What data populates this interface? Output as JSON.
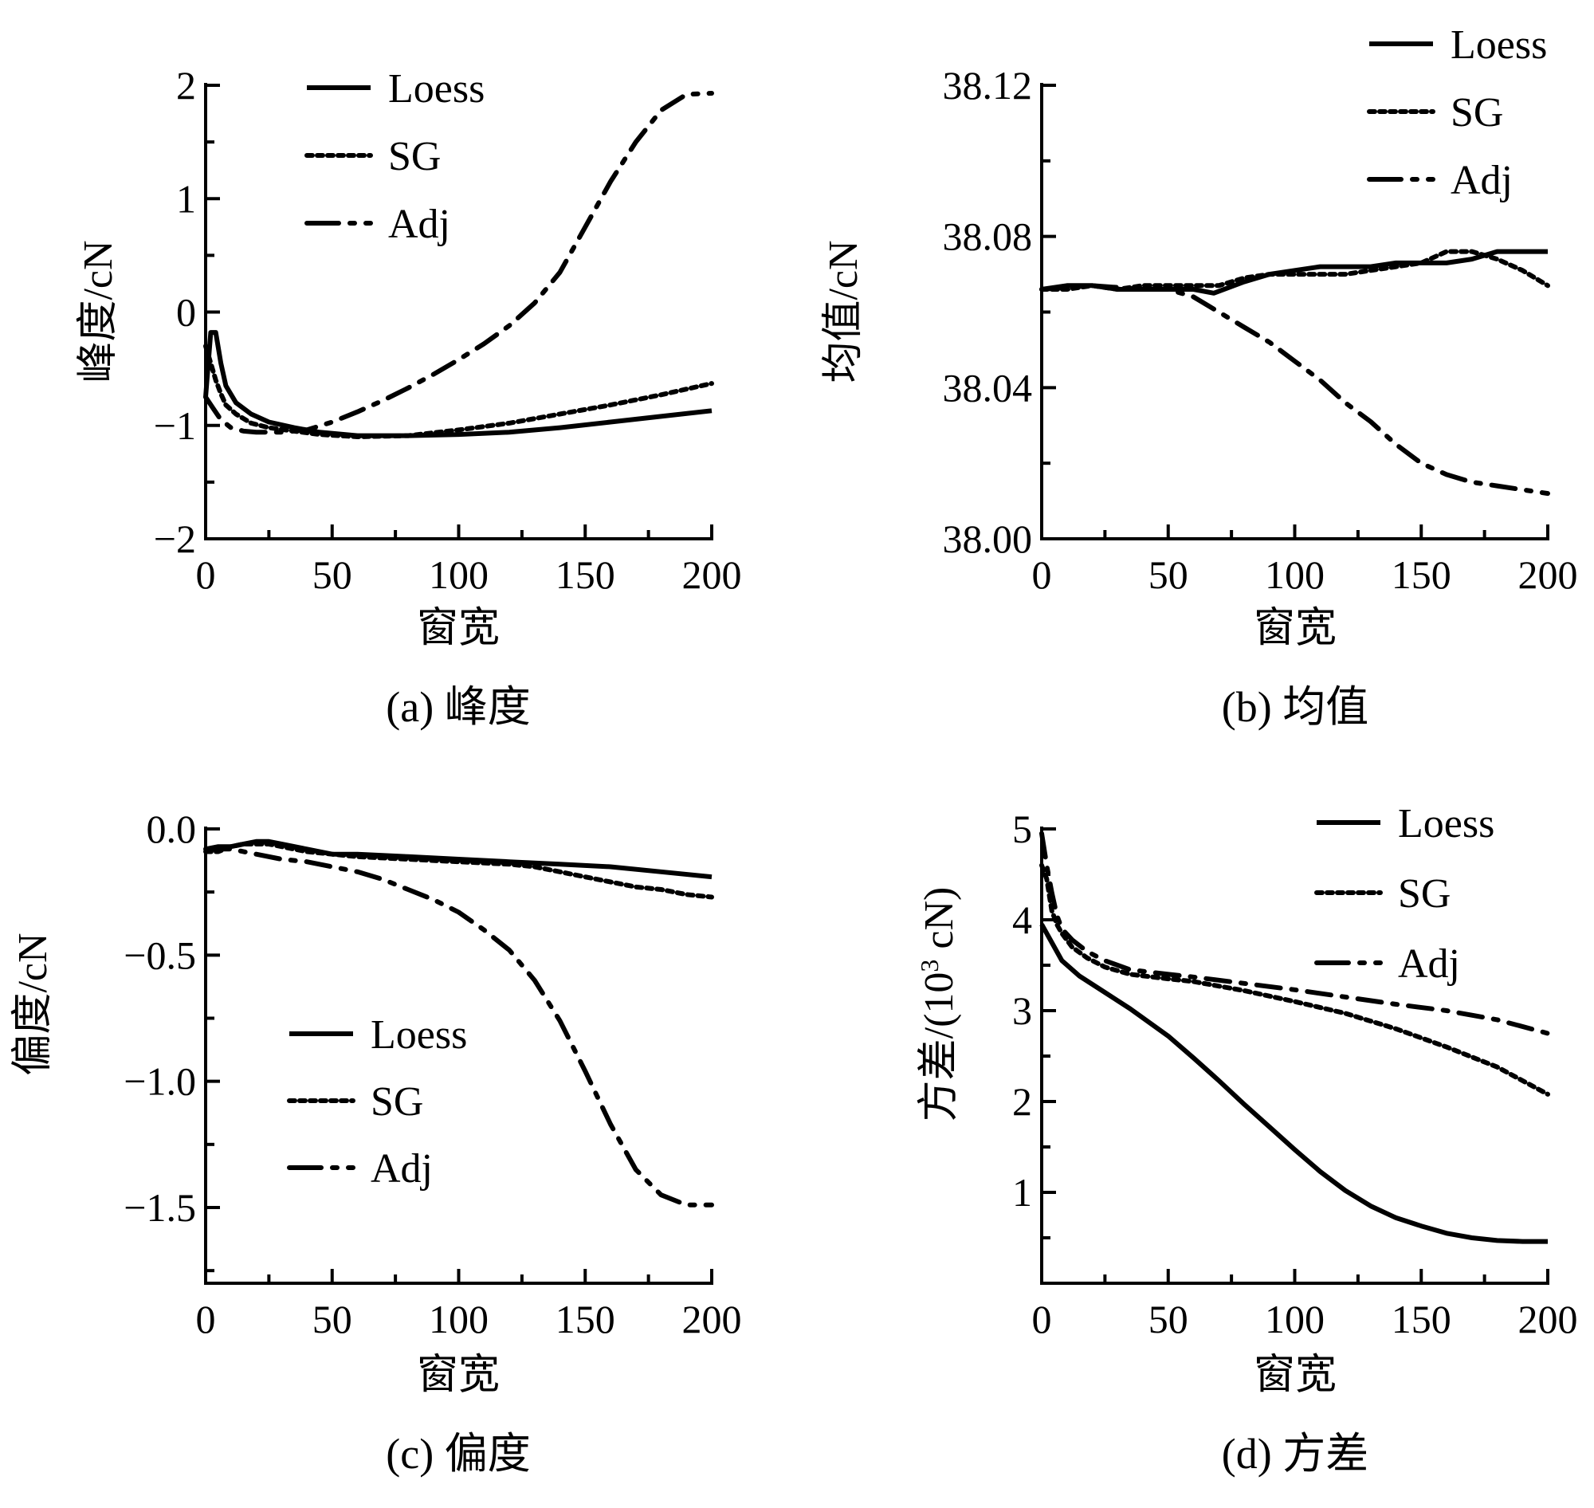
{
  "chart_data": [
    {
      "id": "a",
      "type": "line",
      "caption": "(a)  峰度",
      "xlabel": "窗宽",
      "ylabel": "峰度/cN",
      "xlim": [
        0,
        200
      ],
      "ylim": [
        -2,
        2
      ],
      "xticks": [
        0,
        50,
        100,
        150,
        200
      ],
      "xtick_labels": [
        "0",
        "50",
        "100",
        "150",
        "200"
      ],
      "yticks": [
        -2,
        -1,
        0,
        1,
        2
      ],
      "ytick_labels": [
        "−2",
        "−1",
        "0",
        "1",
        "2"
      ],
      "legend_position": "top-left",
      "series": [
        {
          "name": "Loess",
          "style": "solid",
          "x": [
            0,
            2,
            4,
            6,
            8,
            12,
            18,
            25,
            35,
            45,
            60,
            80,
            100,
            120,
            140,
            160,
            180,
            200
          ],
          "y": [
            -0.75,
            -0.18,
            -0.18,
            -0.45,
            -0.65,
            -0.8,
            -0.9,
            -0.97,
            -1.02,
            -1.06,
            -1.09,
            -1.09,
            -1.08,
            -1.06,
            -1.02,
            -0.97,
            -0.92,
            -0.87
          ]
        },
        {
          "name": "SG",
          "style": "dotted",
          "x": [
            0,
            2,
            4,
            6,
            8,
            12,
            18,
            25,
            35,
            45,
            60,
            80,
            100,
            120,
            140,
            160,
            180,
            200
          ],
          "y": [
            -0.3,
            -0.45,
            -0.6,
            -0.72,
            -0.82,
            -0.9,
            -0.98,
            -1.02,
            -1.05,
            -1.08,
            -1.1,
            -1.09,
            -1.04,
            -0.98,
            -0.9,
            -0.82,
            -0.73,
            -0.63
          ]
        },
        {
          "name": "Adj",
          "style": "dashdot",
          "x": [
            0,
            3,
            6,
            10,
            15,
            20,
            30,
            40,
            50,
            60,
            70,
            80,
            90,
            100,
            110,
            120,
            130,
            140,
            150,
            160,
            170,
            180,
            190,
            200
          ],
          "y": [
            -0.75,
            -0.85,
            -0.95,
            -1.02,
            -1.05,
            -1.06,
            -1.06,
            -1.04,
            -0.97,
            -0.88,
            -0.78,
            -0.67,
            -0.55,
            -0.42,
            -0.28,
            -0.12,
            0.08,
            0.35,
            0.75,
            1.15,
            1.5,
            1.78,
            1.92,
            1.93
          ]
        }
      ]
    },
    {
      "id": "b",
      "type": "line",
      "caption": "(b)  均值",
      "xlabel": "窗宽",
      "ylabel": "均值/cN",
      "xlim": [
        0,
        200
      ],
      "ylim": [
        38.0,
        38.12
      ],
      "xticks": [
        0,
        50,
        100,
        150,
        200
      ],
      "xtick_labels": [
        "0",
        "50",
        "100",
        "150",
        "200"
      ],
      "yticks": [
        38.0,
        38.04,
        38.08,
        38.12
      ],
      "ytick_labels": [
        "38.00",
        "38.04",
        "38.08",
        "38.12"
      ],
      "legend_position": "top-right",
      "series": [
        {
          "name": "Loess",
          "style": "solid",
          "x": [
            0,
            10,
            20,
            30,
            40,
            50,
            60,
            68,
            80,
            90,
            100,
            110,
            120,
            130,
            140,
            150,
            160,
            170,
            180,
            185,
            200
          ],
          "y": [
            38.066,
            38.067,
            38.067,
            38.066,
            38.066,
            38.066,
            38.066,
            38.065,
            38.068,
            38.07,
            38.071,
            38.072,
            38.072,
            38.072,
            38.073,
            38.073,
            38.073,
            38.074,
            38.076,
            38.076,
            38.076
          ]
        },
        {
          "name": "SG",
          "style": "dotted",
          "x": [
            0,
            10,
            20,
            30,
            40,
            50,
            60,
            70,
            80,
            90,
            100,
            110,
            120,
            130,
            140,
            150,
            160,
            170,
            180,
            190,
            200
          ],
          "y": [
            38.066,
            38.066,
            38.067,
            38.066,
            38.067,
            38.067,
            38.067,
            38.067,
            38.069,
            38.07,
            38.07,
            38.07,
            38.07,
            38.071,
            38.072,
            38.073,
            38.076,
            38.076,
            38.074,
            38.071,
            38.067
          ]
        },
        {
          "name": "Adj",
          "style": "dashdot",
          "x": [
            0,
            20,
            40,
            50,
            60,
            70,
            80,
            90,
            100,
            110,
            120,
            130,
            140,
            150,
            160,
            170,
            180,
            190,
            200
          ],
          "y": [
            38.066,
            38.067,
            38.066,
            38.066,
            38.064,
            38.06,
            38.056,
            38.052,
            38.047,
            38.042,
            38.036,
            38.031,
            38.025,
            38.02,
            38.017,
            38.015,
            38.014,
            38.013,
            38.012
          ]
        }
      ]
    },
    {
      "id": "c",
      "type": "line",
      "caption": "(c)  偏度",
      "xlabel": "窗宽",
      "ylabel": "偏度/cN",
      "xlim": [
        0,
        200
      ],
      "ylim": [
        -1.8,
        0.0
      ],
      "xticks": [
        0,
        50,
        100,
        150,
        200
      ],
      "xtick_labels": [
        "0",
        "50",
        "100",
        "150",
        "200"
      ],
      "yticks": [
        0.0,
        -0.5,
        -1.0,
        -1.5
      ],
      "ytick_labels": [
        "0.0",
        "−0.5",
        "−1.0",
        "−1.5"
      ],
      "legend_position": "center-left",
      "series": [
        {
          "name": "Loess",
          "style": "solid",
          "x": [
            0,
            5,
            10,
            15,
            20,
            25,
            30,
            40,
            50,
            60,
            80,
            100,
            120,
            140,
            160,
            180,
            200
          ],
          "y": [
            -0.08,
            -0.07,
            -0.07,
            -0.06,
            -0.05,
            -0.05,
            -0.06,
            -0.08,
            -0.1,
            -0.1,
            -0.11,
            -0.12,
            -0.13,
            -0.14,
            -0.15,
            -0.17,
            -0.19
          ]
        },
        {
          "name": "SG",
          "style": "dotted",
          "x": [
            0,
            5,
            10,
            15,
            20,
            25,
            30,
            40,
            50,
            60,
            80,
            100,
            120,
            130,
            140,
            150,
            160,
            170,
            180,
            190,
            200
          ],
          "y": [
            -0.09,
            -0.09,
            -0.07,
            -0.06,
            -0.06,
            -0.06,
            -0.07,
            -0.09,
            -0.1,
            -0.11,
            -0.12,
            -0.13,
            -0.14,
            -0.15,
            -0.17,
            -0.19,
            -0.21,
            -0.23,
            -0.24,
            -0.26,
            -0.27
          ]
        },
        {
          "name": "Adj",
          "style": "dashdot",
          "x": [
            0,
            5,
            10,
            20,
            30,
            40,
            50,
            60,
            70,
            80,
            90,
            100,
            110,
            120,
            130,
            140,
            150,
            160,
            170,
            180,
            190,
            200
          ],
          "y": [
            -0.08,
            -0.08,
            -0.08,
            -0.1,
            -0.12,
            -0.13,
            -0.15,
            -0.17,
            -0.2,
            -0.24,
            -0.28,
            -0.33,
            -0.4,
            -0.48,
            -0.6,
            -0.76,
            -0.96,
            -1.17,
            -1.35,
            -1.45,
            -1.49,
            -1.49
          ]
        }
      ]
    },
    {
      "id": "d",
      "type": "line",
      "caption": "(d)  方差",
      "xlabel": "窗宽",
      "ylabel": "方差/(10",
      "ylabel_sup": "3",
      "ylabel_tail": " cN)",
      "xlim": [
        0,
        200
      ],
      "ylim": [
        0,
        5
      ],
      "xticks": [
        0,
        50,
        100,
        150,
        200
      ],
      "xtick_labels": [
        "0",
        "50",
        "100",
        "150",
        "200"
      ],
      "yticks": [
        1,
        2,
        3,
        4,
        5
      ],
      "ytick_labels": [
        "1",
        "2",
        "3",
        "4",
        "5"
      ],
      "legend_position": "top-right",
      "series": [
        {
          "name": "Loess",
          "style": "solid",
          "x": [
            0,
            4,
            8,
            15,
            25,
            35,
            50,
            60,
            70,
            80,
            90,
            100,
            110,
            120,
            130,
            140,
            150,
            160,
            170,
            180,
            190,
            200
          ],
          "y": [
            3.95,
            3.75,
            3.55,
            3.38,
            3.2,
            3.02,
            2.72,
            2.48,
            2.23,
            1.97,
            1.72,
            1.47,
            1.23,
            1.02,
            0.85,
            0.72,
            0.63,
            0.55,
            0.5,
            0.47,
            0.46,
            0.46
          ]
        },
        {
          "name": "SG",
          "style": "dotted",
          "x": [
            0,
            2,
            4,
            6,
            8,
            12,
            18,
            25,
            35,
            50,
            60,
            80,
            100,
            120,
            140,
            160,
            180,
            200
          ],
          "y": [
            4.6,
            4.45,
            4.1,
            3.95,
            3.85,
            3.7,
            3.58,
            3.48,
            3.4,
            3.35,
            3.32,
            3.22,
            3.1,
            2.97,
            2.8,
            2.6,
            2.38,
            2.08
          ]
        },
        {
          "name": "Adj",
          "style": "dashdot",
          "x": [
            0,
            2,
            4,
            6,
            8,
            12,
            18,
            25,
            35,
            50,
            60,
            80,
            100,
            120,
            140,
            160,
            180,
            200
          ],
          "y": [
            4.95,
            4.6,
            4.3,
            4.05,
            3.9,
            3.78,
            3.65,
            3.55,
            3.45,
            3.4,
            3.37,
            3.3,
            3.23,
            3.15,
            3.07,
            3.0,
            2.9,
            2.75
          ]
        }
      ]
    }
  ]
}
